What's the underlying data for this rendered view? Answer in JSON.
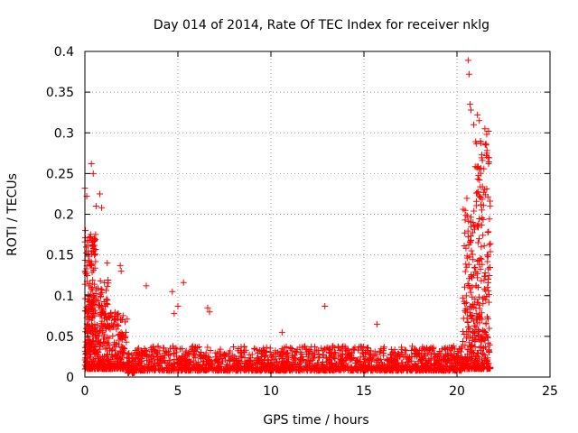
{
  "chart_data": {
    "type": "scatter",
    "title": "Day 014 of 2014, Rate Of TEC Index for receiver nklg",
    "xlabel": "GPS time / hours",
    "ylabel": "ROTI / TECUs",
    "xlim": [
      0,
      25
    ],
    "ylim": [
      0,
      0.4
    ],
    "x_ticks": [
      "0",
      "5",
      "10",
      "15",
      "20",
      "25"
    ],
    "y_ticks": [
      "0",
      "0.05",
      "0.1",
      "0.15",
      "0.2",
      "0.25",
      "0.3",
      "0.35",
      "0.4"
    ],
    "grid": true,
    "marker": "+",
    "color": "#ff0000",
    "series": [
      {
        "name": "ROTI",
        "segments": [
          {
            "x_range": [
              0.0,
              0.6
            ],
            "y_range": [
              0.01,
              0.18
            ],
            "count": 260
          },
          {
            "x_range": [
              0.6,
              1.3
            ],
            "y_range": [
              0.01,
              0.12
            ],
            "count": 180
          },
          {
            "x_range": [
              1.3,
              2.3
            ],
            "y_range": [
              0.01,
              0.08
            ],
            "count": 160
          },
          {
            "x_range": [
              2.3,
              2.7
            ],
            "y_range": [
              0.005,
              0.03
            ],
            "count": 60
          },
          {
            "x_range": [
              2.7,
              20.3
            ],
            "y_range": [
              0.008,
              0.038
            ],
            "count": 1700
          },
          {
            "x_range": [
              20.3,
              20.9
            ],
            "y_range": [
              0.01,
              0.22
            ],
            "count": 150
          },
          {
            "x_range": [
              20.9,
              21.8
            ],
            "y_range": [
              0.01,
              0.29
            ],
            "count": 260
          }
        ],
        "highlights": [
          [
            0.0,
            0.232
          ],
          [
            0.1,
            0.222
          ],
          [
            0.35,
            0.262
          ],
          [
            0.45,
            0.25
          ],
          [
            0.6,
            0.21
          ],
          [
            0.8,
            0.225
          ],
          [
            0.9,
            0.208
          ],
          [
            1.2,
            0.14
          ],
          [
            1.9,
            0.137
          ],
          [
            1.95,
            0.13
          ],
          [
            3.3,
            0.112
          ],
          [
            4.7,
            0.105
          ],
          [
            4.8,
            0.078
          ],
          [
            5.0,
            0.087
          ],
          [
            5.3,
            0.116
          ],
          [
            6.6,
            0.085
          ],
          [
            6.7,
            0.08
          ],
          [
            12.9,
            0.087
          ],
          [
            15.7,
            0.065
          ],
          [
            10.6,
            0.055
          ],
          [
            20.6,
            0.389
          ],
          [
            20.65,
            0.372
          ],
          [
            20.7,
            0.335
          ],
          [
            20.75,
            0.328
          ],
          [
            20.9,
            0.31
          ],
          [
            21.1,
            0.322
          ],
          [
            21.2,
            0.315
          ],
          [
            21.5,
            0.305
          ],
          [
            21.6,
            0.298
          ],
          [
            21.7,
            0.302
          ],
          [
            21.6,
            0.275
          ],
          [
            21.7,
            0.262
          ]
        ]
      }
    ]
  }
}
